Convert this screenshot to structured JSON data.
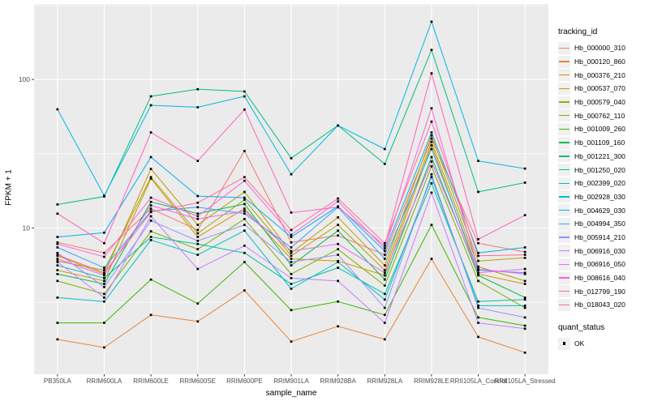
{
  "figure": {
    "background": "#FFFFFF",
    "panel_background": "#EBEBEB",
    "grid_color": "#FFFFFF",
    "tick_color": "#333333",
    "tick_label_color": "#4D4D4D",
    "point_color": "#000000"
  },
  "legend": {
    "tracking_title": "tracking_id",
    "quant_title": "quant_status",
    "quant_items": [
      {
        "label": "OK",
        "marker": "black-square-icon"
      }
    ]
  },
  "axes": {
    "y_tick_labels": [
      "100",
      "10"
    ],
    "x_tick_count": 11
  },
  "chart_data": {
    "type": "line",
    "title": "",
    "xlabel": "sample_name",
    "ylabel": "FPKM + 1",
    "y_scale": "log10",
    "ylim": [
      1.04,
      322
    ],
    "y_major_breaks": [
      10,
      100
    ],
    "y_minor_breaks": [
      3.162,
      31.623,
      316.228
    ],
    "grid": true,
    "legend_position": "right",
    "point_marker": "black-square",
    "categories": [
      "PB350LA",
      "RRIM600LA",
      "RRIM600LE",
      "RRIM600SE",
      "RRIM600PE",
      "RRIM901LA",
      "RRIM928BA",
      "RRIM928LA",
      "RRIM928LE",
      "RRII105LA_Control",
      "RRII105LA_Stressed"
    ],
    "series": [
      {
        "name": "Hb_000000_310",
        "color": "#F8766D",
        "values": [
          8.0,
          6.8,
          13.5,
          9.7,
          33,
          8.0,
          8.9,
          6.6,
          40,
          7.9,
          6.9
        ]
      },
      {
        "name": "Hb_000120_860",
        "color": "#EA8331",
        "values": [
          1.78,
          1.57,
          2.6,
          2.35,
          3.8,
          1.72,
          2.18,
          1.78,
          6.2,
          1.85,
          1.45
        ]
      },
      {
        "name": "Hb_000376_210",
        "color": "#D89000",
        "values": [
          5.2,
          4.4,
          21.5,
          8.7,
          13.5,
          6.2,
          6.0,
          4.8,
          36,
          4.9,
          4.2
        ]
      },
      {
        "name": "Hb_000537_070",
        "color": "#C09B00",
        "values": [
          6.5,
          4.9,
          25,
          10.5,
          17.5,
          6.8,
          11.8,
          5.6,
          42,
          6.0,
          6.3
        ]
      },
      {
        "name": "Hb_000579_040",
        "color": "#A3A500",
        "values": [
          6.0,
          5.2,
          22,
          9.2,
          15.5,
          6.5,
          10.5,
          5.2,
          38,
          5.5,
          4.4
        ]
      },
      {
        "name": "Hb_000762_110",
        "color": "#7CAE00",
        "values": [
          4.4,
          3.6,
          9.5,
          7.2,
          11.5,
          4.9,
          7.2,
          4.1,
          26,
          4.4,
          2.9
        ]
      },
      {
        "name": "Hb_001009_260",
        "color": "#39B600",
        "values": [
          2.3,
          2.3,
          4.5,
          3.1,
          5.9,
          2.8,
          3.2,
          2.6,
          10.5,
          2.5,
          2.2
        ]
      },
      {
        "name": "Hb_001109_160",
        "color": "#00BB4E",
        "values": [
          4.9,
          4.2,
          15,
          12.5,
          14.5,
          5.6,
          9.6,
          4.5,
          30,
          4.8,
          3.4
        ]
      },
      {
        "name": "Hb_001221_300",
        "color": "#00BF7D",
        "values": [
          14.4,
          16.3,
          77,
          86,
          83,
          29.5,
          49,
          27,
          158,
          17.5,
          20.2
        ]
      },
      {
        "name": "Hb_001250_020",
        "color": "#00C1A3",
        "values": [
          5.6,
          4.6,
          8.7,
          7.8,
          6.8,
          4.2,
          5.4,
          3.6,
          20,
          3.2,
          3.3
        ]
      },
      {
        "name": "Hb_002399_020",
        "color": "#00BFC4",
        "values": [
          3.4,
          3.2,
          8.3,
          6.6,
          9.6,
          3.9,
          5.9,
          3.3,
          22,
          3.0,
          3.0
        ]
      },
      {
        "name": "Hb_002928_030",
        "color": "#00BADE",
        "values": [
          63,
          16.5,
          67,
          65,
          77,
          23,
          49,
          34,
          245,
          28.3,
          25.1
        ]
      },
      {
        "name": "Hb_004629_030",
        "color": "#00B0F6",
        "values": [
          8.7,
          9.3,
          30,
          16.4,
          16,
          8.7,
          14,
          7.0,
          44,
          6.8,
          7.4
        ]
      },
      {
        "name": "Hb_004994_350",
        "color": "#35A2FF",
        "values": [
          7.4,
          5.4,
          13,
          13.8,
          12.5,
          7.4,
          13.8,
          6.2,
          34,
          5.2,
          5.0
        ]
      },
      {
        "name": "Hb_005914_210",
        "color": "#9590FF",
        "values": [
          6.8,
          4.0,
          11.2,
          8.2,
          10.5,
          5.9,
          6.6,
          2.9,
          23,
          2.9,
          2.5
        ]
      },
      {
        "name": "Hb_006916_030",
        "color": "#C77CFF",
        "values": [
          5.9,
          3.4,
          12.0,
          5.3,
          7.6,
          4.6,
          4.4,
          2.3,
          17.3,
          2.3,
          2.1
        ]
      },
      {
        "name": "Hb_006916_050",
        "color": "#E76BF3",
        "values": [
          6.2,
          4.8,
          14.2,
          11.5,
          13,
          7.0,
          7.8,
          5.0,
          28,
          5.0,
          5.3
        ]
      },
      {
        "name": "Hb_008616_040",
        "color": "#FA62DB",
        "values": [
          7.8,
          6.4,
          16,
          12.0,
          20.8,
          9.0,
          15.1,
          7.3,
          64,
          5.3,
          4.9
        ]
      },
      {
        "name": "Hb_012799_190",
        "color": "#FF62BC",
        "values": [
          12.5,
          7.9,
          44,
          28.3,
          62.7,
          12.7,
          13.8,
          7.6,
          110,
          8.4,
          12.2
        ]
      },
      {
        "name": "Hb_018043_020",
        "color": "#FF6A98",
        "values": [
          6.6,
          5.0,
          12.8,
          14.8,
          22,
          9.7,
          15.8,
          7.9,
          52,
          6.5,
          6.6
        ]
      }
    ]
  }
}
